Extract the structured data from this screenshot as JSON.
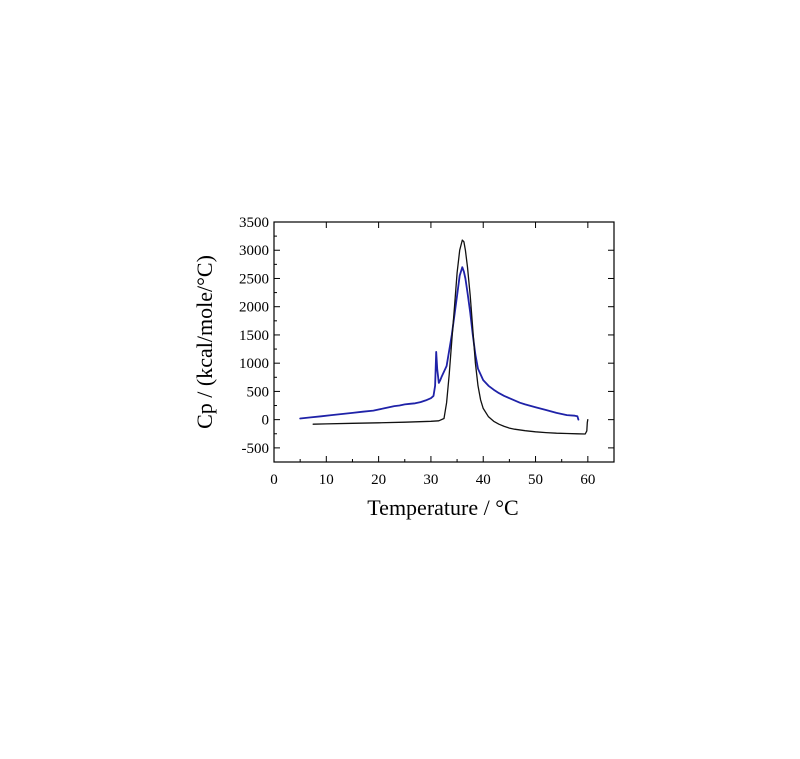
{
  "chart_data": {
    "type": "line",
    "title": "",
    "xlabel": "Temperature / °C",
    "ylabel": "Cp / (kcal/mole/°C)",
    "xlim": [
      0,
      65
    ],
    "ylim": [
      -750,
      3500
    ],
    "x_ticks": [
      0,
      10,
      20,
      30,
      40,
      50,
      60
    ],
    "y_ticks": [
      -500,
      0,
      500,
      1000,
      1500,
      2000,
      2500,
      3000,
      3500
    ],
    "grid": false,
    "legend": "none",
    "series": [
      {
        "color": "#1f22a8",
        "x": [
          5,
          7,
          9,
          11,
          13,
          15,
          17,
          19,
          20,
          21,
          22,
          23,
          24,
          25,
          26,
          27,
          28,
          29,
          30,
          30.5,
          30.8,
          31.0,
          31.2,
          31.5,
          31.8,
          32,
          33,
          34,
          35,
          35.5,
          36,
          36.3,
          36.6,
          37,
          37.5,
          38,
          38.5,
          39,
          40,
          41,
          42,
          43,
          44,
          45,
          46,
          47,
          48,
          50,
          52,
          54,
          56,
          57.5,
          58,
          58.2
        ],
        "y": [
          20,
          40,
          60,
          80,
          100,
          120,
          140,
          160,
          180,
          200,
          220,
          240,
          250,
          270,
          280,
          290,
          310,
          340,
          380,
          420,
          600,
          1200,
          900,
          650,
          700,
          750,
          950,
          1500,
          2200,
          2550,
          2700,
          2620,
          2500,
          2250,
          1900,
          1500,
          1150,
          900,
          700,
          600,
          530,
          470,
          420,
          380,
          340,
          300,
          270,
          220,
          170,
          120,
          80,
          70,
          60,
          0
        ]
      },
      {
        "color": "#111111",
        "x": [
          7.5,
          10,
          15,
          20,
          25,
          30,
          31.5,
          32.5,
          33,
          33.5,
          34,
          34.5,
          35,
          35.5,
          36,
          36.3,
          36.6,
          37,
          37.5,
          38,
          38.5,
          39,
          39.5,
          40,
          41,
          42,
          43,
          44,
          45,
          46,
          48,
          50,
          52,
          54,
          56,
          58,
          59.5,
          59.8,
          59.9,
          60
        ],
        "y": [
          -80,
          -75,
          -65,
          -55,
          -45,
          -30,
          -20,
          20,
          300,
          800,
          1400,
          2000,
          2600,
          3000,
          3180,
          3150,
          3000,
          2700,
          2200,
          1600,
          1000,
          600,
          350,
          200,
          50,
          -30,
          -80,
          -120,
          -150,
          -170,
          -195,
          -215,
          -230,
          -240,
          -245,
          -250,
          -255,
          -200,
          -50,
          0
        ]
      }
    ]
  }
}
